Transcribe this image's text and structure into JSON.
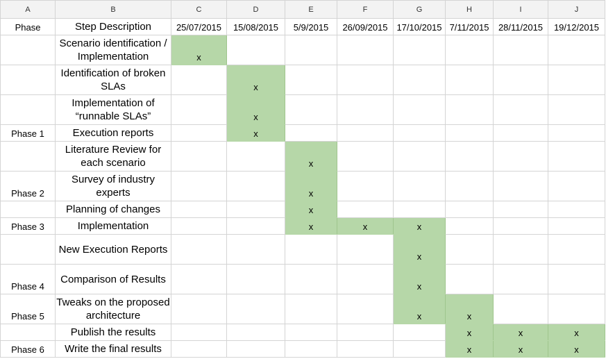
{
  "fill_color": "#b6d7a8",
  "column_letters": [
    "A",
    "B",
    "C",
    "D",
    "E",
    "F",
    "G",
    "H",
    "I",
    "J"
  ],
  "header": {
    "phase": "Phase",
    "step_description": "Step Description",
    "dates": [
      "25/07/2015",
      "15/08/2015",
      "5/9/2015",
      "26/09/2015",
      "17/10/2015",
      "7/11/2015",
      "28/11/2015",
      "19/12/2015"
    ]
  },
  "mark": "x",
  "rows": [
    {
      "phase": "",
      "step": "Scenario identification / Implementation",
      "marks": [
        0
      ]
    },
    {
      "phase": "",
      "step": "Identification of broken SLAs",
      "marks": [
        1
      ]
    },
    {
      "phase": "",
      "step": "Implementation of “runnable SLAs”",
      "marks": [
        1
      ]
    },
    {
      "phase": "Phase 1",
      "step": "Execution reports",
      "marks": [
        1
      ]
    },
    {
      "phase": "",
      "step": "Literature Review for each scenario",
      "marks": [
        2
      ]
    },
    {
      "phase": "Phase 2",
      "step": "Survey of industry experts",
      "marks": [
        2
      ]
    },
    {
      "phase": "",
      "step": "Planning of changes",
      "marks": [
        2
      ]
    },
    {
      "phase": "Phase 3",
      "step": "Implementation",
      "marks": [
        2,
        3,
        4
      ]
    },
    {
      "phase": "",
      "step": "New Execution Reports",
      "marks": [
        4
      ]
    },
    {
      "phase": "Phase 4",
      "step": "Comparison of Results",
      "marks": [
        4
      ]
    },
    {
      "phase": "Phase 5",
      "step": "Tweaks on the proposed architecture",
      "marks": [
        4,
        5
      ]
    },
    {
      "phase": "",
      "step": "Publish the results",
      "marks": [
        5,
        6,
        7
      ]
    },
    {
      "phase": "Phase 6",
      "step": "Write the final results",
      "marks": [
        5,
        6,
        7
      ]
    }
  ]
}
